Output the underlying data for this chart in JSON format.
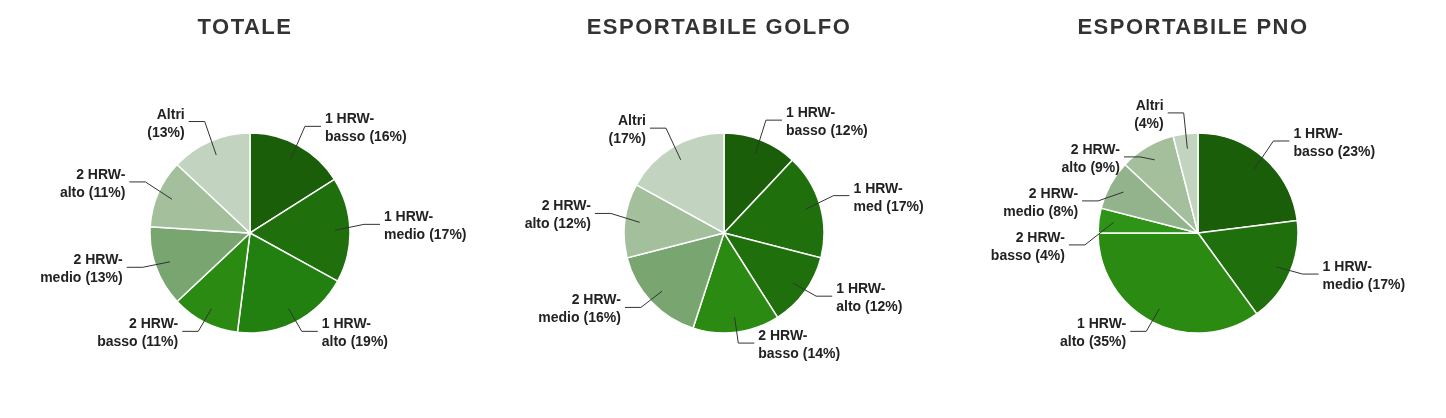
{
  "chart_data": [
    {
      "type": "pie",
      "title": "TOTALE",
      "categories": [
        "1 HRW-basso",
        "1 HRW-medio",
        "1 HRW-alto",
        "2 HRW-basso",
        "2 HRW-medio",
        "2 HRW-alto",
        "Altri"
      ],
      "values": [
        16,
        17,
        19,
        11,
        13,
        11,
        13
      ],
      "value_labels": [
        "(16%)",
        "(17%)",
        "(19%)",
        "(11%)",
        "(13%)",
        "(11%)",
        "(13%)"
      ],
      "colors": [
        "#1a5e0a",
        "#1f700d",
        "#228010",
        "#2a8a12",
        "#78a570",
        "#a3bf9c",
        "#c2d4c0"
      ]
    },
    {
      "type": "pie",
      "title": "ESPORTABILE GOLFO",
      "categories": [
        "1 HRW-basso",
        "1 HRW-med",
        "1 HRW-alto",
        "2 HRW-basso",
        "2 HRW-medio",
        "2 HRW-alto",
        "Altri"
      ],
      "values": [
        12,
        17,
        12,
        14,
        16,
        12,
        17
      ],
      "value_labels": [
        "(12%)",
        "(17%)",
        "(12%)",
        "(14%)",
        "(16%)",
        "(12%)",
        "(17%)"
      ],
      "colors": [
        "#1a5e0a",
        "#1f700d",
        "#1f700d",
        "#2a8a12",
        "#78a570",
        "#a3bf9c",
        "#c2d4c0"
      ]
    },
    {
      "type": "pie",
      "title": "ESPORTABILE PNO",
      "categories": [
        "1 HRW-basso",
        "1 HRW-medio",
        "1 HRW-alto",
        "2 HRW-basso",
        "2 HRW-medio",
        "2 HRW-alto",
        "Altri"
      ],
      "values": [
        23,
        17,
        35,
        4,
        8,
        9,
        4
      ],
      "value_labels": [
        "(23%)",
        "(17%)",
        "(35%)",
        "(4%)",
        "(8%)",
        "(9%)",
        "(4%)"
      ],
      "colors": [
        "#1a5e0a",
        "#1f700d",
        "#2a8a12",
        "#2e9418",
        "#92b38b",
        "#a3bf9c",
        "#c2d4c0"
      ]
    }
  ]
}
